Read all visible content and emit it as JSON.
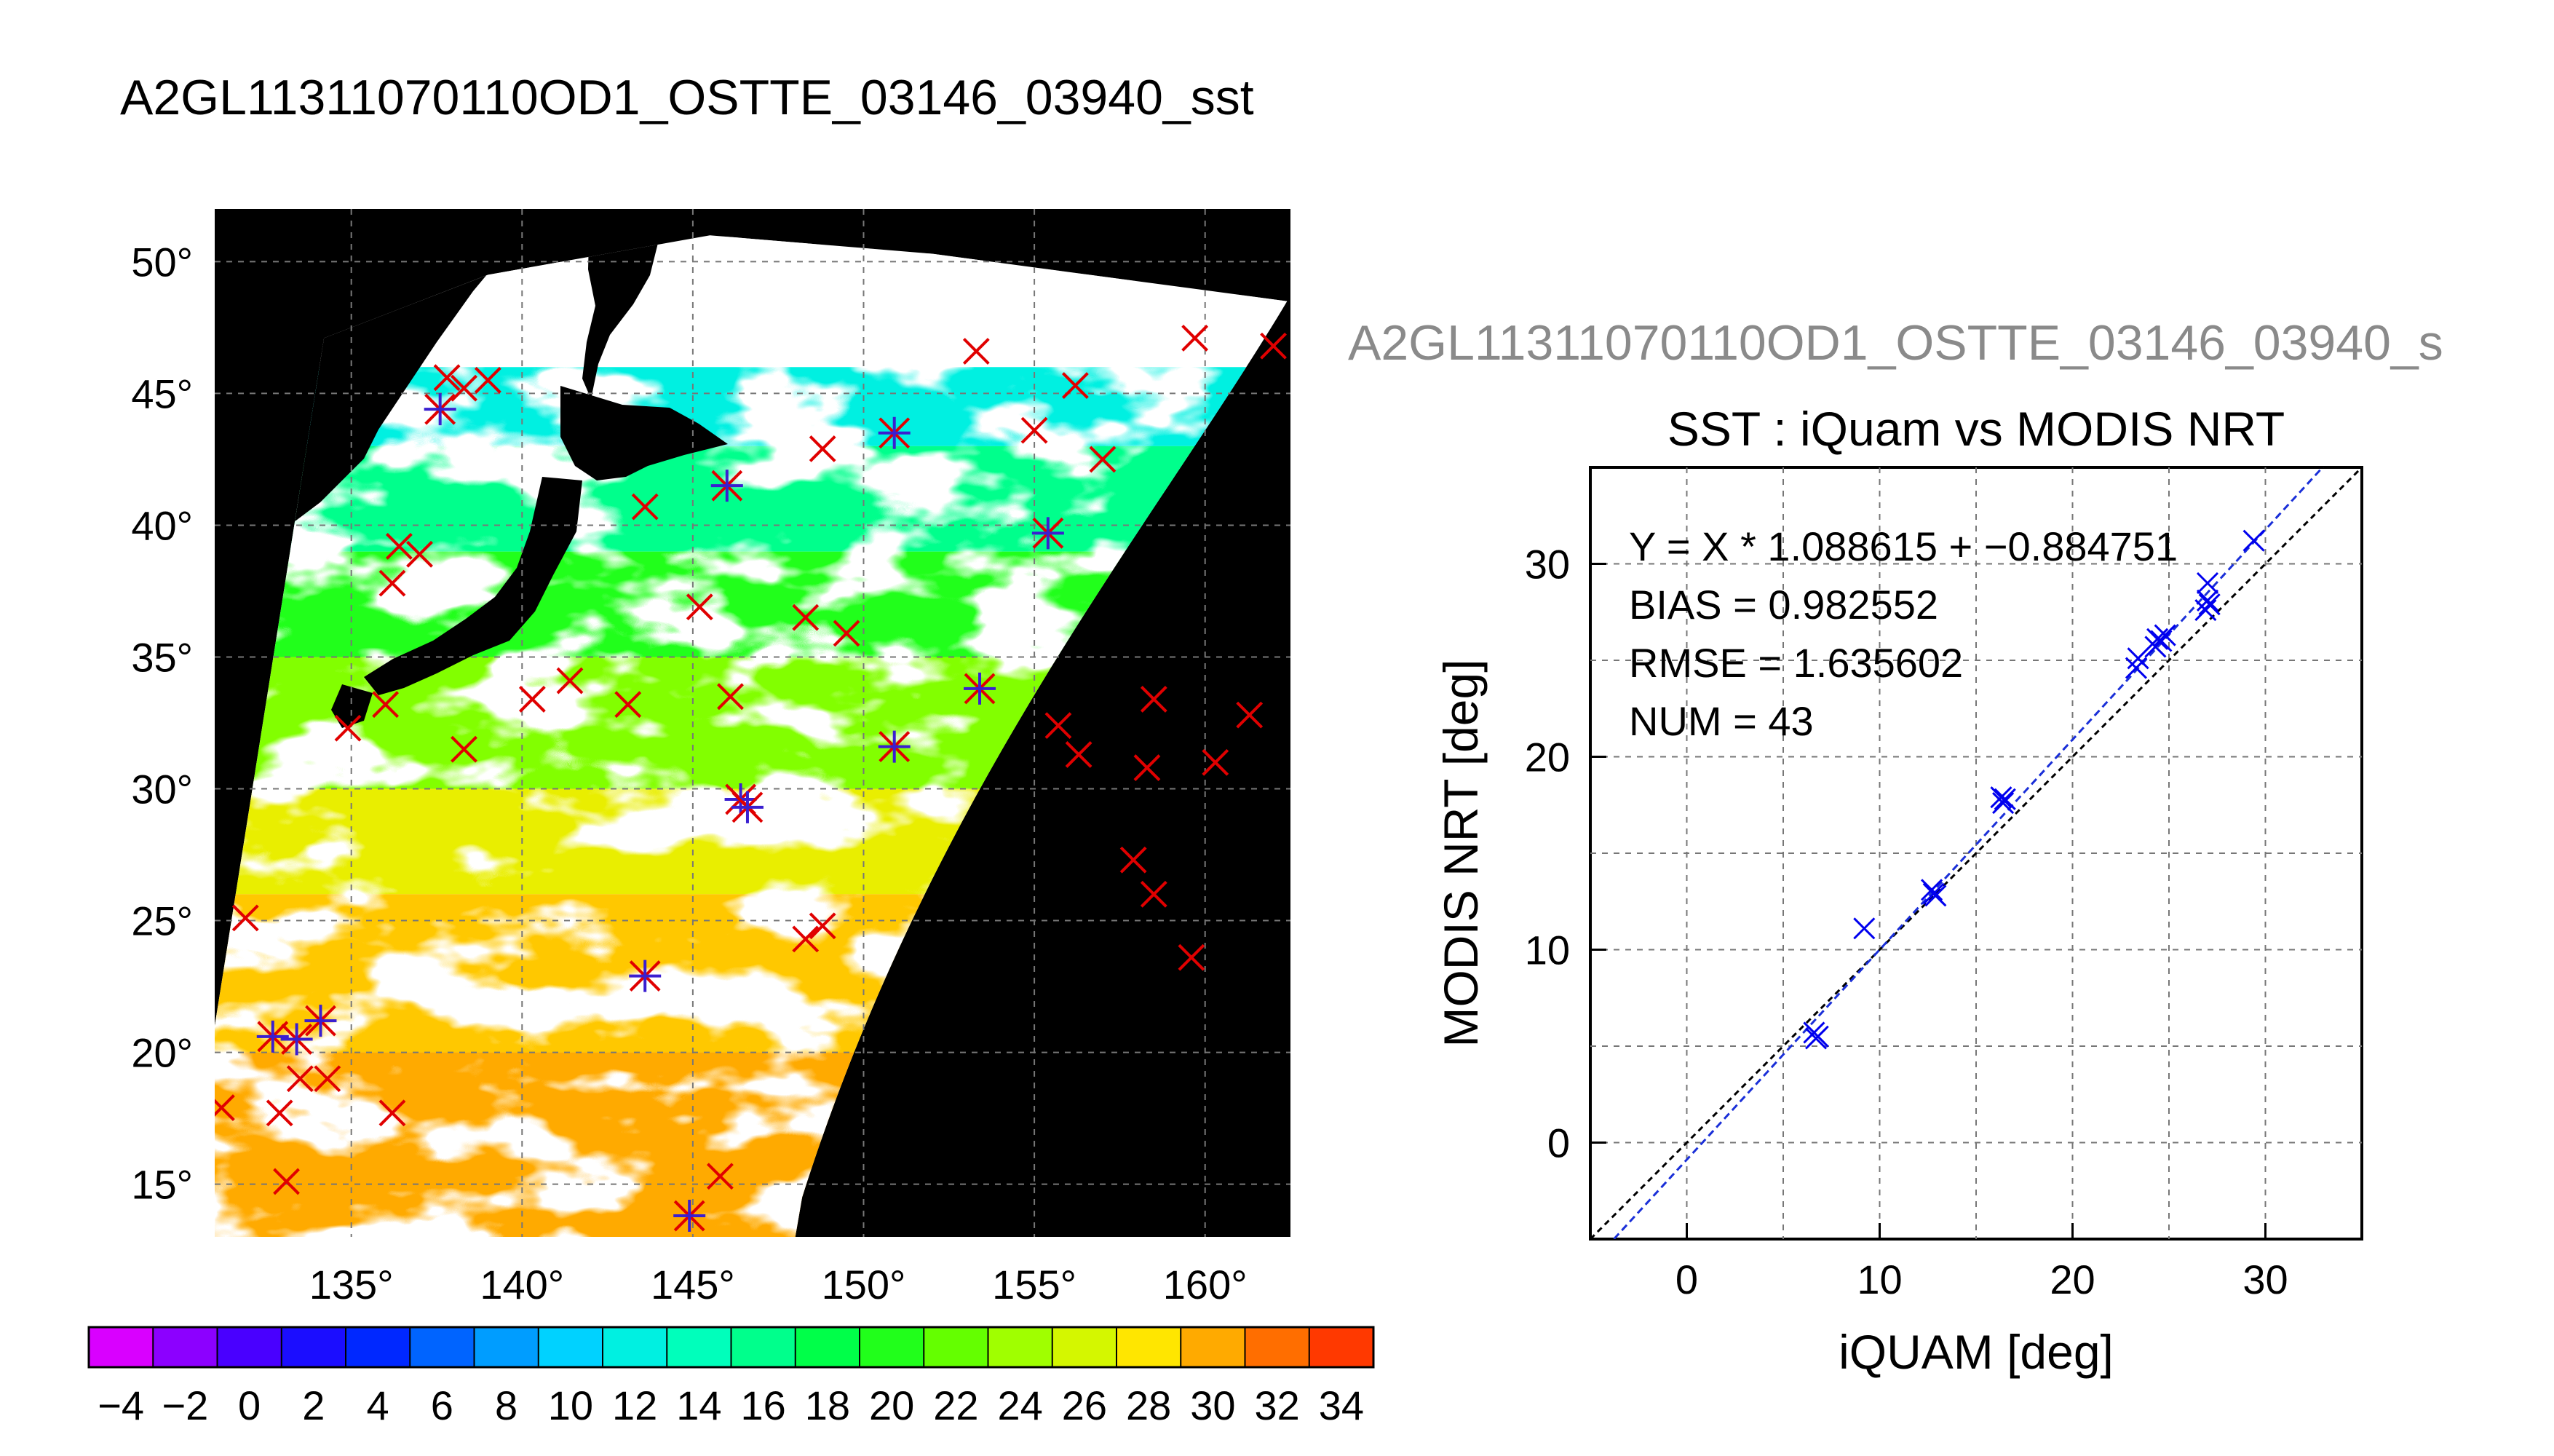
{
  "main_title": "A2GL11311070110OD1_OSTTE_03146_03940_sst",
  "ghost_title": "A2GL11311070110OD1_OSTTE_03146_03940_s",
  "colors": {
    "land": "#000000",
    "cloud": "#ffffff",
    "insitu_marker": "#e00000",
    "matched_marker": "#3a1fd0",
    "scatter_marker": "#0000ee",
    "fit_line": "#1a2fd8",
    "identity_line": "#000000",
    "grid": "#777777"
  },
  "colorbar": {
    "ticks": [
      "−4",
      "−2",
      "0",
      "2",
      "4",
      "6",
      "8",
      "10",
      "12",
      "14",
      "16",
      "18",
      "20",
      "22",
      "24",
      "26",
      "28",
      "30",
      "32",
      "34"
    ],
    "range": [
      -5,
      35
    ],
    "bins": 20,
    "colormap": "rainbow (magenta → blue → cyan → green → yellow → orange → red)"
  },
  "chart_data": [
    {
      "type": "map",
      "variable": "sst",
      "lon_range": [
        131,
        162.5
      ],
      "lat_range": [
        13,
        52
      ],
      "lon_ticks": [
        "135°",
        "140°",
        "145°",
        "150°",
        "155°",
        "160°"
      ],
      "lat_ticks": [
        "15°",
        "20°",
        "25°",
        "30°",
        "35°",
        "40°",
        "45°",
        "50°"
      ],
      "grid": true,
      "sst_bands": [
        {
          "lat": [
            43,
            46
          ],
          "sst": 12
        },
        {
          "lat": [
            39,
            43
          ],
          "sst": 16
        },
        {
          "lat": [
            35,
            39
          ],
          "sst": 20
        },
        {
          "lat": [
            30,
            35
          ],
          "sst": 23
        },
        {
          "lat": [
            26,
            30
          ],
          "sst": 27
        },
        {
          "lat": [
            20,
            26
          ],
          "sst": 29
        },
        {
          "lat": [
            13,
            20
          ],
          "sst": 30
        }
      ],
      "insitu_points": [
        {
          "lon": 137.8,
          "lat": 45.6
        },
        {
          "lon": 138.3,
          "lat": 45.2
        },
        {
          "lon": 139.0,
          "lat": 45.5
        },
        {
          "lon": 136.4,
          "lat": 39.2
        },
        {
          "lon": 137.0,
          "lat": 38.9
        },
        {
          "lon": 136.2,
          "lat": 37.8
        },
        {
          "lon": 136.0,
          "lat": 33.2
        },
        {
          "lon": 134.9,
          "lat": 32.3
        },
        {
          "lon": 138.3,
          "lat": 31.5
        },
        {
          "lon": 140.3,
          "lat": 33.4
        },
        {
          "lon": 141.4,
          "lat": 34.1
        },
        {
          "lon": 143.1,
          "lat": 33.2
        },
        {
          "lon": 143.6,
          "lat": 40.7
        },
        {
          "lon": 145.2,
          "lat": 36.9
        },
        {
          "lon": 146.1,
          "lat": 33.5
        },
        {
          "lon": 148.3,
          "lat": 36.5
        },
        {
          "lon": 149.5,
          "lat": 35.9
        },
        {
          "lon": 148.8,
          "lat": 42.9
        },
        {
          "lon": 153.3,
          "lat": 46.6
        },
        {
          "lon": 155.0,
          "lat": 43.6
        },
        {
          "lon": 156.2,
          "lat": 45.3
        },
        {
          "lon": 157.0,
          "lat": 42.5
        },
        {
          "lon": 159.7,
          "lat": 47.1
        },
        {
          "lon": 162.0,
          "lat": 46.8
        },
        {
          "lon": 155.7,
          "lat": 32.4
        },
        {
          "lon": 156.3,
          "lat": 31.3
        },
        {
          "lon": 158.5,
          "lat": 33.4
        },
        {
          "lon": 158.3,
          "lat": 30.8
        },
        {
          "lon": 160.3,
          "lat": 31.0
        },
        {
          "lon": 161.3,
          "lat": 32.8
        },
        {
          "lon": 157.9,
          "lat": 27.3
        },
        {
          "lon": 158.5,
          "lat": 26.0
        },
        {
          "lon": 159.6,
          "lat": 23.6
        },
        {
          "lon": 148.3,
          "lat": 24.3
        },
        {
          "lon": 148.8,
          "lat": 24.8
        },
        {
          "lon": 131.9,
          "lat": 25.1
        },
        {
          "lon": 132.9,
          "lat": 17.7
        },
        {
          "lon": 133.1,
          "lat": 15.1
        },
        {
          "lon": 133.5,
          "lat": 19.0
        },
        {
          "lon": 134.3,
          "lat": 19.0
        },
        {
          "lon": 136.2,
          "lat": 17.7
        },
        {
          "lon": 131.2,
          "lat": 17.9
        },
        {
          "lon": 145.8,
          "lat": 15.3
        }
      ],
      "matched_points": [
        {
          "lon": 137.6,
          "lat": 44.4
        },
        {
          "lon": 146.0,
          "lat": 41.5
        },
        {
          "lon": 150.9,
          "lat": 43.5
        },
        {
          "lon": 155.4,
          "lat": 39.7
        },
        {
          "lon": 153.4,
          "lat": 33.8
        },
        {
          "lon": 150.9,
          "lat": 31.6
        },
        {
          "lon": 146.4,
          "lat": 29.6
        },
        {
          "lon": 146.6,
          "lat": 29.3
        },
        {
          "lon": 143.6,
          "lat": 22.9
        },
        {
          "lon": 132.7,
          "lat": 20.6
        },
        {
          "lon": 133.4,
          "lat": 20.5
        },
        {
          "lon": 134.1,
          "lat": 21.2
        },
        {
          "lon": 144.9,
          "lat": 13.8
        }
      ]
    },
    {
      "type": "scatter",
      "title": "SST : iQuam vs MODIS NRT",
      "xlabel": "iQUAM [deg]",
      "ylabel": "MODIS NRT [deg]",
      "xlim": [
        -5,
        35
      ],
      "ylim": [
        -5,
        35
      ],
      "xticks": [
        "0",
        "10",
        "20",
        "30"
      ],
      "yticks": [
        "0",
        "10",
        "20",
        "30"
      ],
      "grid": true,
      "stats": {
        "fit": "Y = X * 1.088615 + −0.884751",
        "bias": "BIAS = 0.982552",
        "rmse": "RMSE = 1.635602",
        "num": "NUM = 43"
      },
      "fit_slope": 1.088615,
      "fit_intercept": -0.884751,
      "x": [
        6.6,
        6.7,
        6.8,
        9.2,
        12.7,
        12.8,
        12.9,
        16.3,
        16.4,
        16.5,
        23.3,
        23.4,
        24.3,
        24.4,
        24.6,
        24.8,
        26.9,
        27.0,
        27.1,
        27.0,
        29.4
      ],
      "y": [
        5.7,
        5.4,
        5.5,
        11.1,
        13.1,
        12.9,
        12.8,
        17.9,
        17.6,
        17.8,
        24.6,
        25.1,
        25.7,
        26.1,
        26.0,
        26.3,
        27.6,
        28.1,
        27.9,
        29.0,
        31.2
      ]
    }
  ]
}
